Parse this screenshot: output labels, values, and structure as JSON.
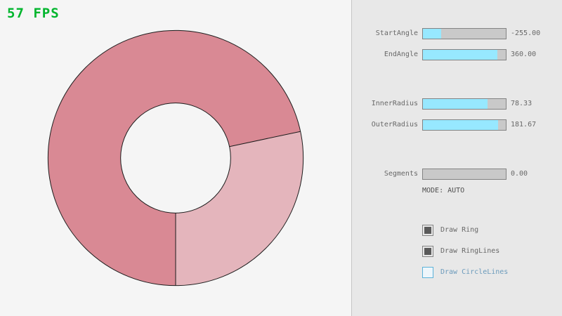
{
  "fps": {
    "label": "57 FPS"
  },
  "panel": {
    "sliders": [
      {
        "label": "StartAngle",
        "value": "-255.00",
        "fill_pct": 21.7
      },
      {
        "label": "EndAngle",
        "value": "360.00",
        "fill_pct": 90.0
      },
      {
        "label": "InnerRadius",
        "value": "78.33",
        "fill_pct": 78.3
      },
      {
        "label": "OuterRadius",
        "value": "181.67",
        "fill_pct": 90.8
      },
      {
        "label": "Segments",
        "value": "0.00",
        "fill_pct": 0
      }
    ],
    "mode_text": "MODE: AUTO",
    "checkboxes": [
      {
        "label": "Draw Ring",
        "checked": true
      },
      {
        "label": "Draw RingLines",
        "checked": true
      },
      {
        "label": "Draw CircleLines",
        "checked": false,
        "state": "focused"
      }
    ]
  },
  "ring": {
    "start_angle": "-255.00",
    "end_angle": "360.00",
    "inner_radius": "78.33",
    "outer_radius": "181.67",
    "dark_color": "#d98994",
    "light_color": "#e4b5bc",
    "outline_color": "#1c1c1c"
  },
  "theme": {
    "bg": "#f5f5f5",
    "panel-bg": "#e8e8e8",
    "panel-border": "#c6c6c6",
    "slider-bg": "#c9c9c9",
    "slider-fill": "#97e8ff",
    "control-border": "#838383",
    "text-color": "#686868",
    "mode-color": "#4f4f4f",
    "check-fill": "#5a5a5a",
    "focus-border": "#5bb2d9",
    "focus-bg": "#eef6fb",
    "focus-text": "#6c9bbc",
    "fps-color": "#00b52d"
  }
}
